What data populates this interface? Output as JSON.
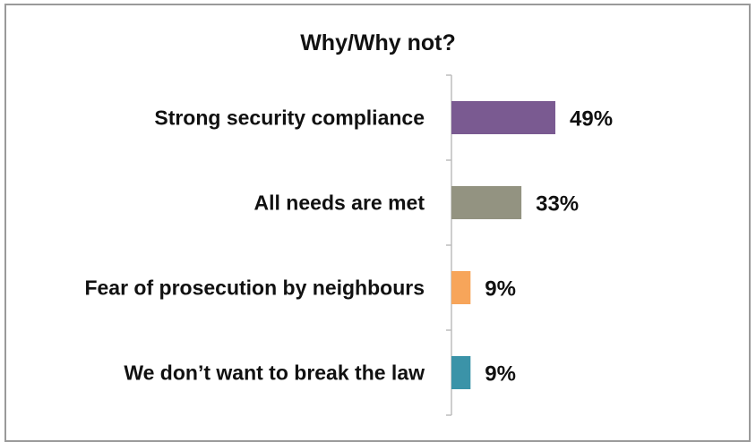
{
  "chart_data": {
    "type": "bar",
    "orientation": "horizontal",
    "title": "Why/Why not?",
    "categories": [
      "Strong security compliance",
      "All needs are met",
      "Fear of prosecution by neighbours",
      "We don’t want to break the law"
    ],
    "values": [
      49,
      33,
      9,
      9
    ],
    "value_labels": [
      "49%",
      "33%",
      "9%",
      "9%"
    ],
    "bar_colors": [
      "#7a5a91",
      "#939381",
      "#f7a55a",
      "#3b93a8"
    ],
    "xlim": [
      0,
      100
    ],
    "grid": false,
    "legend": "none"
  }
}
